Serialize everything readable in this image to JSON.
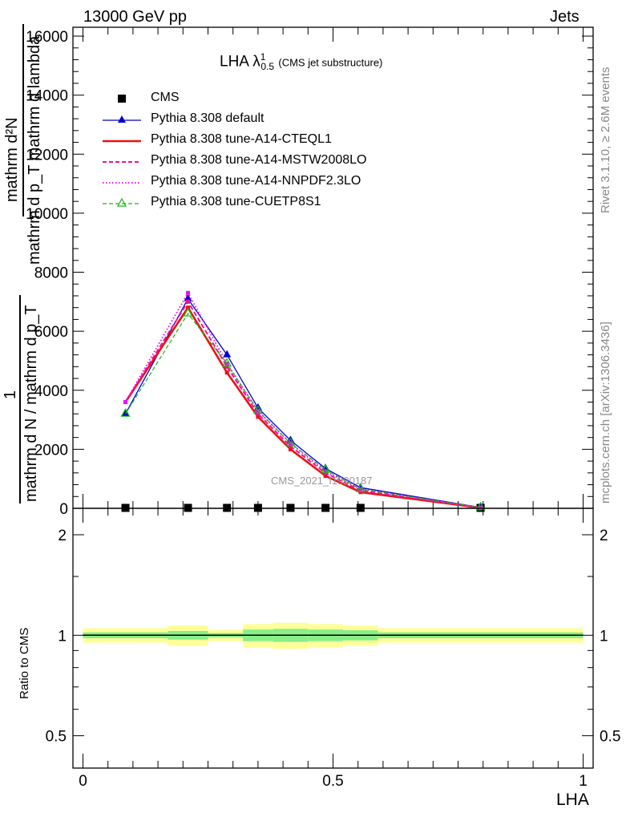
{
  "header": {
    "left": "13000 GeV pp",
    "right": "Jets",
    "side_top": "Rivet 3.1.10, ≥ 2.6M events",
    "side_bottom": "mcplots.cern.ch [arXiv:1306.3436]",
    "watermark": "CMS_2021_I1920187"
  },
  "title": {
    "main": "LHA λ",
    "sup": "1",
    "sub": "0.5",
    "suffix": "(CMS jet substructure)"
  },
  "axis_labels": {
    "main_y_num": "mathrm d²N",
    "main_y_den": "mathrm d p_T mathrm d lambda",
    "main_y_pre": "1",
    "main_y_pre_den": "mathrm d N / mathrm d p_T",
    "ratio_y": "Ratio to CMS",
    "x": "LHA"
  },
  "colors": {
    "data": "#000000",
    "default": "#0000cc",
    "a14_cteql1": "#ee1111",
    "a14_mstw": "#ee1199",
    "a14_nnpdf": "#ee11ee",
    "cuetp8s1": "#11bb11",
    "band_inner": "#88ee88",
    "band_outer": "#ffff99"
  },
  "chart_data": [
    {
      "type": "line",
      "panel": "main",
      "x_range": [
        -0.02,
        1.02
      ],
      "ylim": [
        0,
        16300
      ],
      "y_ticks": [
        0,
        2000,
        4000,
        6000,
        8000,
        10000,
        12000,
        14000,
        16000
      ],
      "y_tick_labels": [
        "0",
        "2000",
        "4000",
        "6000",
        "8000",
        "10000",
        "12000",
        "14000",
        "16000"
      ],
      "x": [
        0.085,
        0.21,
        0.288,
        0.35,
        0.415,
        0.485,
        0.555,
        0.795
      ],
      "series": [
        {
          "name": "CMS",
          "style": "data",
          "values": [
            15,
            15,
            15,
            15,
            15,
            15,
            15,
            15
          ]
        },
        {
          "name": "Pythia 8.308 default",
          "style": "default",
          "values": [
            3200,
            7100,
            5200,
            3400,
            2300,
            1350,
            700,
            30
          ]
        },
        {
          "name": "Pythia 8.308 tune-A14-CTEQL1",
          "style": "a14_cteql1",
          "values": [
            3600,
            6800,
            4600,
            3100,
            2000,
            1100,
            550,
            20
          ]
        },
        {
          "name": "Pythia 8.308 tune-A14-MSTW2008LO",
          "style": "a14_mstw",
          "values": [
            3600,
            7000,
            4800,
            3200,
            2100,
            1200,
            600,
            25
          ]
        },
        {
          "name": "Pythia 8.308 tune-A14-NNPDF2.3LO",
          "style": "a14_nnpdf",
          "values": [
            3600,
            7300,
            4900,
            3300,
            2200,
            1250,
            650,
            25
          ]
        },
        {
          "name": "Pythia 8.308 tune-CUETP8S1",
          "style": "cuetp8s1",
          "values": [
            3200,
            6600,
            4900,
            3300,
            2200,
            1300,
            650,
            30
          ]
        }
      ]
    },
    {
      "type": "area",
      "panel": "ratio",
      "ylim_log": [
        0.4,
        2.4
      ],
      "y_ticks": [
        0.5,
        1,
        2
      ],
      "y_tick_labels": [
        "0.5",
        "1",
        "2"
      ],
      "x_ticks": [
        0,
        0.5,
        1
      ],
      "x_tick_labels": [
        "0",
        "0.5",
        "1"
      ],
      "bins": [
        {
          "lo": 0.0,
          "hi": 0.17,
          "inner": 0.02,
          "outer": 0.05
        },
        {
          "lo": 0.17,
          "hi": 0.25,
          "inner": 0.03,
          "outer": 0.07
        },
        {
          "lo": 0.25,
          "hi": 0.32,
          "inner": 0.015,
          "outer": 0.04
        },
        {
          "lo": 0.32,
          "hi": 0.38,
          "inner": 0.04,
          "outer": 0.08
        },
        {
          "lo": 0.38,
          "hi": 0.45,
          "inner": 0.045,
          "outer": 0.09
        },
        {
          "lo": 0.45,
          "hi": 0.52,
          "inner": 0.04,
          "outer": 0.08
        },
        {
          "lo": 0.52,
          "hi": 0.59,
          "inner": 0.035,
          "outer": 0.07
        },
        {
          "lo": 0.59,
          "hi": 1.0,
          "inner": 0.02,
          "outer": 0.05
        }
      ]
    }
  ]
}
